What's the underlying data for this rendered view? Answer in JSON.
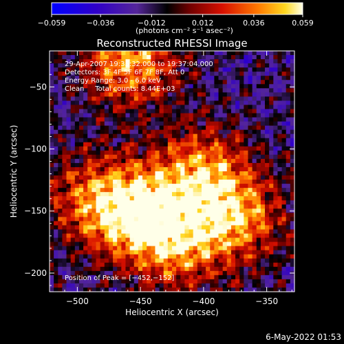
{
  "chart_data": {
    "type": "heatmap",
    "title": "Reconstructed RHESSI Image",
    "xlabel": "Heliocentric X (arcsec)",
    "ylabel": "Heliocentric Y (arcsec)",
    "xlim": [
      -522,
      -328
    ],
    "ylim": [
      -215,
      -21
    ],
    "x_ticks": [
      -500,
      -450,
      -400,
      -350
    ],
    "y_ticks": [
      -50,
      -100,
      -150,
      -200
    ],
    "x_tick_labels": [
      "−500",
      "−450",
      "−400",
      "−350"
    ],
    "y_tick_labels": [
      "−50",
      "−100",
      "−150",
      "−200"
    ],
    "colorbar": {
      "min": -0.059,
      "max": 0.059,
      "ticks": [
        -0.059,
        -0.036,
        -0.012,
        0.012,
        0.036,
        0.059
      ],
      "tick_labels": [
        "−0.059",
        "−0.036",
        "−0.012",
        "0.012",
        "0.036",
        "0.059"
      ],
      "unit_label": "(photons cm⁻² s⁻¹ asec⁻²)"
    },
    "annotations": [
      "29-Apr-2007 19:35:32.000 to 19:37:04.000",
      "Detectors: 3F 4F 5F 6F 7F 8F, Att 0",
      "Energy Range: 3.0 - 6.0 keV",
      "Clean     Total counts: 8.44E+03"
    ],
    "peak_label": "Position of Peak = [−452,−152]",
    "peak": [
      -452,
      -152
    ],
    "hot_spots": [
      {
        "x": -452,
        "y": -152,
        "value": 0.059
      },
      {
        "x": -458,
        "y": -28,
        "value": 0.052
      },
      {
        "x": -402,
        "y": -120,
        "value": 0.045
      },
      {
        "x": -372,
        "y": -155,
        "value": 0.04
      },
      {
        "x": -418,
        "y": -178,
        "value": 0.036
      },
      {
        "x": -488,
        "y": -140,
        "value": 0.03
      }
    ]
  },
  "footer": {
    "date": "6-May-2022 01:53"
  },
  "colors": {
    "background": "#000000",
    "foreground": "#ffffff"
  }
}
